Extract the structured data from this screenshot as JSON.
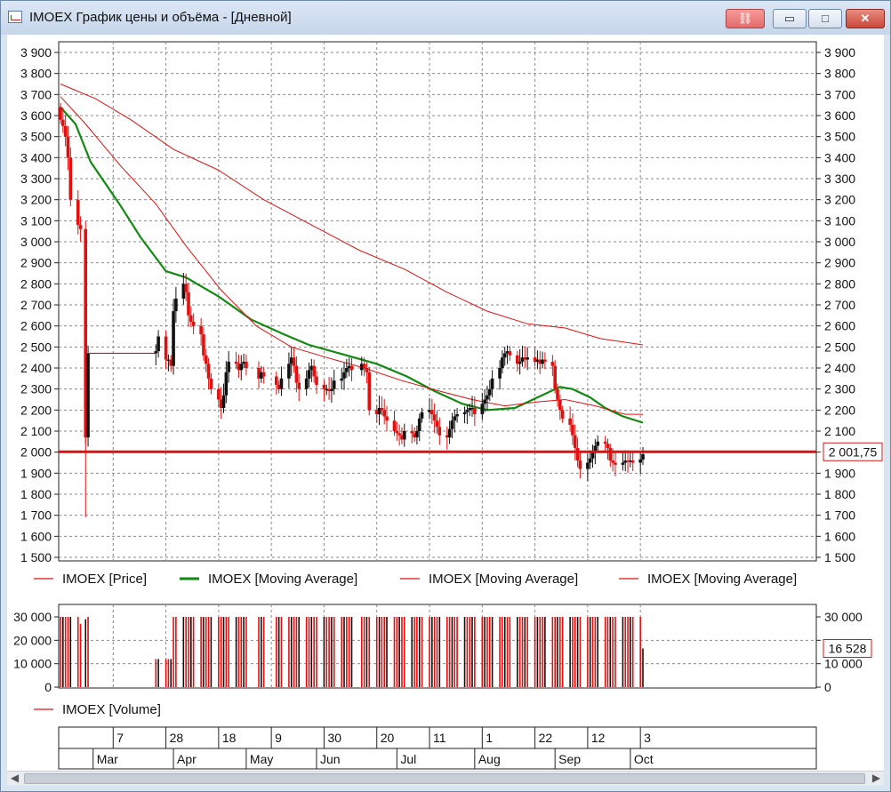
{
  "window": {
    "title": "IMOEX График цены и объёма - [Дневной]",
    "buttons": {
      "link": "⛓",
      "minimize": "▭",
      "maximize": "□",
      "close": "✕"
    }
  },
  "colors": {
    "red": "#e01010",
    "green": "#128a12",
    "black": "#111111",
    "grid": "#8a8a8a",
    "label_box_border": "#d01818"
  },
  "price_axis": {
    "ticks": [
      "3 900",
      "3 800",
      "3 700",
      "3 600",
      "3 500",
      "3 400",
      "3 300",
      "3 200",
      "3 100",
      "3 000",
      "2 900",
      "2 800",
      "2 700",
      "2 600",
      "2 500",
      "2 400",
      "2 300",
      "2 200",
      "2 100",
      "2 000",
      "1 900",
      "1 800",
      "1 700",
      "1 600",
      "1 500"
    ],
    "current_label": "2 001,75"
  },
  "volume_axis": {
    "ticks": [
      "30 000",
      "20 000",
      "10 000",
      "0"
    ],
    "ticks_right": [
      "30 000",
      "",
      "10 000",
      "0"
    ],
    "current_label": "16 528"
  },
  "legend": [
    {
      "text": "IMOEX [Price]",
      "color": "#e01010"
    },
    {
      "text": "IMOEX [Moving Average]",
      "color": "#128a12"
    },
    {
      "text": "IMOEX [Moving Average]",
      "color": "#e01010"
    },
    {
      "text": "IMOEX [Moving Average]",
      "color": "#e01010"
    }
  ],
  "volume_legend": {
    "text": "IMOEX [Volume]",
    "color": "#e01010"
  },
  "time_axis": {
    "days": [
      "7",
      "28",
      "18",
      "9",
      "30",
      "20",
      "11",
      "1",
      "22",
      "12",
      "3"
    ],
    "months": [
      "Mar",
      "Apr",
      "May",
      "Jun",
      "Jul",
      "Aug",
      "Sep",
      "Oct"
    ]
  },
  "chart_data": {
    "type": "line",
    "price_range": [
      1500,
      3900
    ],
    "volume_range": [
      0,
      30000
    ],
    "horizontal_line_at": 2001.75,
    "grid": true,
    "close_series": [
      {
        "x": "Feb 14",
        "y": 3580
      },
      {
        "x": "Feb 15",
        "y": 3550
      },
      {
        "x": "Feb 16",
        "y": 3500
      },
      {
        "x": "Feb 17",
        "y": 3400
      },
      {
        "x": "Feb 18",
        "y": 3200
      },
      {
        "x": "Feb 21",
        "y": 3080
      },
      {
        "x": "Feb 22",
        "y": 3060
      },
      {
        "x": "Feb 24",
        "y": 2070
      },
      {
        "x": "Feb 25",
        "y": 2470
      },
      {
        "x": "Mar 24",
        "y": 2480
      },
      {
        "x": "Mar 25",
        "y": 2550
      },
      {
        "x": "Mar 28",
        "y": 2440
      },
      {
        "x": "Mar 29",
        "y": 2440
      },
      {
        "x": "Mar 30",
        "y": 2410
      },
      {
        "x": "Mar 31",
        "y": 2670
      },
      {
        "x": "Apr 1",
        "y": 2730
      },
      {
        "x": "Apr 4",
        "y": 2800
      },
      {
        "x": "Apr 5",
        "y": 2760
      },
      {
        "x": "Apr 6",
        "y": 2650
      },
      {
        "x": "Apr 7",
        "y": 2620
      },
      {
        "x": "Apr 8",
        "y": 2600
      },
      {
        "x": "Apr 11",
        "y": 2560
      },
      {
        "x": "Apr 12",
        "y": 2460
      },
      {
        "x": "Apr 13",
        "y": 2420
      },
      {
        "x": "Apr 14",
        "y": 2350
      },
      {
        "x": "Apr 15",
        "y": 2300
      },
      {
        "x": "Apr 18",
        "y": 2250
      },
      {
        "x": "Apr 19",
        "y": 2210
      },
      {
        "x": "Apr 20",
        "y": 2270
      },
      {
        "x": "Apr 21",
        "y": 2380
      },
      {
        "x": "Apr 22",
        "y": 2430
      },
      {
        "x": "Apr 25",
        "y": 2420
      },
      {
        "x": "Apr 26",
        "y": 2390
      },
      {
        "x": "Apr 27",
        "y": 2420
      },
      {
        "x": "Apr 28",
        "y": 2430
      },
      {
        "x": "Apr 29",
        "y": 2400
      },
      {
        "x": "May 4",
        "y": 2350
      },
      {
        "x": "May 5",
        "y": 2380
      },
      {
        "x": "May 6",
        "y": 2360
      },
      {
        "x": "May 11",
        "y": 2320
      },
      {
        "x": "May 12",
        "y": 2300
      },
      {
        "x": "May 13",
        "y": 2350
      },
      {
        "x": "May 16",
        "y": 2420
      },
      {
        "x": "May 17",
        "y": 2450
      },
      {
        "x": "May 18",
        "y": 2410
      },
      {
        "x": "May 19",
        "y": 2330
      },
      {
        "x": "May 20",
        "y": 2300
      },
      {
        "x": "May 23",
        "y": 2350
      },
      {
        "x": "May 24",
        "y": 2390
      },
      {
        "x": "May 25",
        "y": 2410
      },
      {
        "x": "May 26",
        "y": 2360
      },
      {
        "x": "May 27",
        "y": 2320
      },
      {
        "x": "May 30",
        "y": 2300
      },
      {
        "x": "May 31",
        "y": 2300
      },
      {
        "x": "Jun 1",
        "y": 2290
      },
      {
        "x": "Jun 2",
        "y": 2300
      },
      {
        "x": "Jun 3",
        "y": 2340
      },
      {
        "x": "Jun 6",
        "y": 2350
      },
      {
        "x": "Jun 7",
        "y": 2380
      },
      {
        "x": "Jun 8",
        "y": 2400
      },
      {
        "x": "Jun 9",
        "y": 2410
      },
      {
        "x": "Jun 10",
        "y": 2390
      },
      {
        "x": "Jun 14",
        "y": 2420
      },
      {
        "x": "Jun 15",
        "y": 2400
      },
      {
        "x": "Jun 16",
        "y": 2380
      },
      {
        "x": "Jun 17",
        "y": 2200
      },
      {
        "x": "Jun 20",
        "y": 2180
      },
      {
        "x": "Jun 21",
        "y": 2210
      },
      {
        "x": "Jun 22",
        "y": 2200
      },
      {
        "x": "Jun 23",
        "y": 2170
      },
      {
        "x": "Jun 24",
        "y": 2150
      },
      {
        "x": "Jun 27",
        "y": 2100
      },
      {
        "x": "Jun 28",
        "y": 2090
      },
      {
        "x": "Jun 29",
        "y": 2080
      },
      {
        "x": "Jun 30",
        "y": 2060
      },
      {
        "x": "Jul 1",
        "y": 2100
      },
      {
        "x": "Jul 4",
        "y": 2090
      },
      {
        "x": "Jul 5",
        "y": 2070
      },
      {
        "x": "Jul 6",
        "y": 2100
      },
      {
        "x": "Jul 7",
        "y": 2160
      },
      {
        "x": "Jul 8",
        "y": 2190
      },
      {
        "x": "Jul 11",
        "y": 2200
      },
      {
        "x": "Jul 12",
        "y": 2180
      },
      {
        "x": "Jul 13",
        "y": 2150
      },
      {
        "x": "Jul 14",
        "y": 2120
      },
      {
        "x": "Jul 15",
        "y": 2080
      },
      {
        "x": "Jul 18",
        "y": 2070
      },
      {
        "x": "Jul 19",
        "y": 2110
      },
      {
        "x": "Jul 20",
        "y": 2150
      },
      {
        "x": "Jul 21",
        "y": 2170
      },
      {
        "x": "Jul 22",
        "y": 2180
      },
      {
        "x": "Jul 25",
        "y": 2190
      },
      {
        "x": "Jul 26",
        "y": 2200
      },
      {
        "x": "Jul 27",
        "y": 2210
      },
      {
        "x": "Jul 28",
        "y": 2210
      },
      {
        "x": "Jul 29",
        "y": 2180
      },
      {
        "x": "Aug 1",
        "y": 2230
      },
      {
        "x": "Aug 2",
        "y": 2250
      },
      {
        "x": "Aug 3",
        "y": 2270
      },
      {
        "x": "Aug 4",
        "y": 2300
      },
      {
        "x": "Aug 5",
        "y": 2350
      },
      {
        "x": "Aug 8",
        "y": 2400
      },
      {
        "x": "Aug 9",
        "y": 2450
      },
      {
        "x": "Aug 10",
        "y": 2470
      },
      {
        "x": "Aug 11",
        "y": 2480
      },
      {
        "x": "Aug 12",
        "y": 2460
      },
      {
        "x": "Aug 15",
        "y": 2420
      },
      {
        "x": "Aug 16",
        "y": 2430
      },
      {
        "x": "Aug 17",
        "y": 2450
      },
      {
        "x": "Aug 18",
        "y": 2440
      },
      {
        "x": "Aug 19",
        "y": 2450
      },
      {
        "x": "Aug 22",
        "y": 2430
      },
      {
        "x": "Aug 23",
        "y": 2440
      },
      {
        "x": "Aug 24",
        "y": 2420
      },
      {
        "x": "Aug 25",
        "y": 2440
      },
      {
        "x": "Aug 26",
        "y": 2430
      },
      {
        "x": "Aug 29",
        "y": 2410
      },
      {
        "x": "Aug 30",
        "y": 2300
      },
      {
        "x": "Aug 31",
        "y": 2250
      },
      {
        "x": "Sep 1",
        "y": 2200
      },
      {
        "x": "Sep 2",
        "y": 2160
      },
      {
        "x": "Sep 5",
        "y": 2130
      },
      {
        "x": "Sep 6",
        "y": 2080
      },
      {
        "x": "Sep 7",
        "y": 2020
      },
      {
        "x": "Sep 8",
        "y": 1960
      },
      {
        "x": "Sep 9",
        "y": 1920
      },
      {
        "x": "Sep 12",
        "y": 1950
      },
      {
        "x": "Sep 13",
        "y": 1970
      },
      {
        "x": "Sep 14",
        "y": 2000
      },
      {
        "x": "Sep 15",
        "y": 2030
      },
      {
        "x": "Sep 16",
        "y": 2050
      },
      {
        "x": "Sep 19",
        "y": 2040
      },
      {
        "x": "Sep 20",
        "y": 2020
      },
      {
        "x": "Sep 21",
        "y": 1960
      },
      {
        "x": "Sep 22",
        "y": 1950
      },
      {
        "x": "Sep 23",
        "y": 1940
      },
      {
        "x": "Sep 26",
        "y": 1950
      },
      {
        "x": "Sep 27",
        "y": 1960
      },
      {
        "x": "Sep 28",
        "y": 1955
      },
      {
        "x": "Sep 29",
        "y": 1960
      },
      {
        "x": "Sep 30",
        "y": 1950
      },
      {
        "x": "Oct 3",
        "y": 1965
      },
      {
        "x": "Oct 4",
        "y": 1990
      }
    ],
    "moving_averages": [
      {
        "color": "#128a12",
        "points": [
          {
            "x": "Feb 14",
            "y": 3640
          },
          {
            "x": "Feb 20",
            "y": 3560
          },
          {
            "x": "Feb 26",
            "y": 3380
          },
          {
            "x": "Mar 10",
            "y": 3170
          },
          {
            "x": "Mar 18",
            "y": 3020
          },
          {
            "x": "Mar 28",
            "y": 2860
          },
          {
            "x": "Apr 5",
            "y": 2830
          },
          {
            "x": "Apr 18",
            "y": 2740
          },
          {
            "x": "May 1",
            "y": 2630
          },
          {
            "x": "May 14",
            "y": 2560
          },
          {
            "x": "May 24",
            "y": 2510
          },
          {
            "x": "Jun 8",
            "y": 2460
          },
          {
            "x": "Jun 20",
            "y": 2420
          },
          {
            "x": "Jul 2",
            "y": 2360
          },
          {
            "x": "Jul 13",
            "y": 2290
          },
          {
            "x": "Jul 24",
            "y": 2230
          },
          {
            "x": "Aug 3",
            "y": 2200
          },
          {
            "x": "Aug 14",
            "y": 2210
          },
          {
            "x": "Aug 23",
            "y": 2260
          },
          {
            "x": "Sep 1",
            "y": 2310
          },
          {
            "x": "Sep 6",
            "y": 2300
          },
          {
            "x": "Sep 13",
            "y": 2260
          },
          {
            "x": "Sep 19",
            "y": 2210
          },
          {
            "x": "Sep 26",
            "y": 2170
          },
          {
            "x": "Oct 4",
            "y": 2140
          }
        ]
      },
      {
        "color": "#e01010",
        "points": [
          {
            "x": "Feb 14",
            "y": 3690
          },
          {
            "x": "Feb 24",
            "y": 3560
          },
          {
            "x": "Mar 10",
            "y": 3360
          },
          {
            "x": "Mar 24",
            "y": 3180
          },
          {
            "x": "Apr 5",
            "y": 2980
          },
          {
            "x": "Apr 19",
            "y": 2770
          },
          {
            "x": "May 3",
            "y": 2600
          },
          {
            "x": "May 17",
            "y": 2500
          },
          {
            "x": "May 31",
            "y": 2450
          },
          {
            "x": "Jun 15",
            "y": 2400
          },
          {
            "x": "Jun 30",
            "y": 2340
          },
          {
            "x": "Jul 15",
            "y": 2290
          },
          {
            "x": "Jul 28",
            "y": 2250
          },
          {
            "x": "Aug 10",
            "y": 2220
          },
          {
            "x": "Aug 24",
            "y": 2240
          },
          {
            "x": "Sep 3",
            "y": 2250
          },
          {
            "x": "Sep 15",
            "y": 2220
          },
          {
            "x": "Sep 27",
            "y": 2180
          },
          {
            "x": "Oct 4",
            "y": 2180
          }
        ]
      },
      {
        "color": "#e01010",
        "points": [
          {
            "x": "Feb 14",
            "y": 3750
          },
          {
            "x": "Feb 28",
            "y": 3680
          },
          {
            "x": "Mar 14",
            "y": 3580
          },
          {
            "x": "Mar 31",
            "y": 3440
          },
          {
            "x": "Apr 18",
            "y": 3340
          },
          {
            "x": "May 6",
            "y": 3200
          },
          {
            "x": "May 25",
            "y": 3080
          },
          {
            "x": "Jun 13",
            "y": 2960
          },
          {
            "x": "Jul 1",
            "y": 2870
          },
          {
            "x": "Jul 18",
            "y": 2760
          },
          {
            "x": "Aug 3",
            "y": 2670
          },
          {
            "x": "Aug 19",
            "y": 2610
          },
          {
            "x": "Sep 3",
            "y": 2590
          },
          {
            "x": "Sep 17",
            "y": 2540
          },
          {
            "x": "Oct 4",
            "y": 2510
          }
        ]
      }
    ],
    "volume": [
      {
        "x": "Feb 14",
        "y": 30000
      },
      {
        "x": "Feb 15",
        "y": 30000
      },
      {
        "x": "Feb 16",
        "y": 30000
      },
      {
        "x": "Feb 17",
        "y": 30000
      },
      {
        "x": "Feb 18",
        "y": 30000
      },
      {
        "x": "Feb 21",
        "y": 30000
      },
      {
        "x": "Feb 22",
        "y": 27000
      },
      {
        "x": "Feb 24",
        "y": 29000
      },
      {
        "x": "Mar 24",
        "y": 12000
      },
      {
        "x": "Mar 25",
        "y": 12000
      },
      {
        "x": "Mar 28",
        "y": 12000
      },
      {
        "x": "Mar 29",
        "y": 12000
      },
      {
        "x": "Mar 30",
        "y": 12000
      },
      {
        "x": "Mar 31",
        "y": 30000
      },
      {
        "x": "Apr 1",
        "y": 30000
      },
      {
        "x": "Apr 4",
        "y": 30000
      },
      {
        "x": "Apr 20",
        "y": 30000
      },
      {
        "x": "May 18",
        "y": 30000
      },
      {
        "x": "Jun 15",
        "y": 30000
      },
      {
        "x": "Jul 13",
        "y": 30000
      },
      {
        "x": "Aug 10",
        "y": 30000
      },
      {
        "x": "Sep 7",
        "y": 30000
      },
      {
        "x": "Oct 4",
        "y": 16528
      }
    ]
  }
}
